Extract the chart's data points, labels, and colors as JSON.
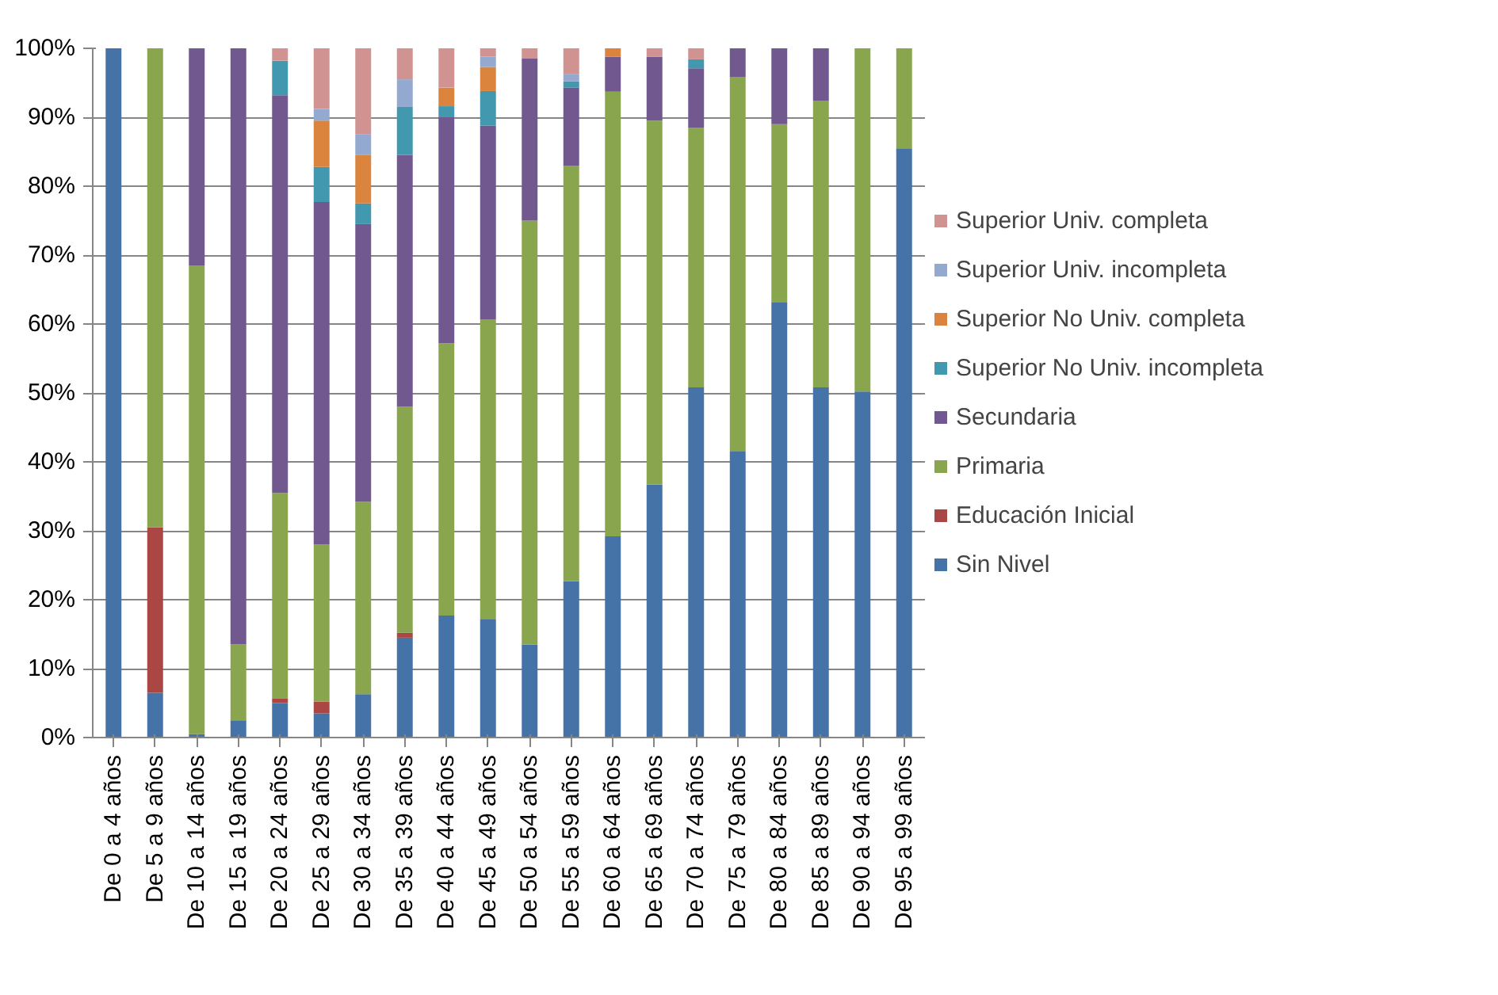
{
  "chart_data": {
    "type": "bar",
    "stacked": true,
    "categories": [
      "De 0 a 4 años",
      "De 5 a 9 años",
      "De 10 a 14 años",
      "De 15 a 19 años",
      "De 20 a 24 años",
      "De 25 a 29 años",
      "De 30 a 34 años",
      "De 35 a 39 años",
      "De 40 a 44 años",
      "De 45 a 49 años",
      "De 50 a 54 años",
      "De 55 a 59 años",
      "De 60 a 64 años",
      "De 65 a 69 años",
      "De 70 a 74 años",
      "De 75 a 79 años",
      "De 80 a 84 años",
      "De 85 a 89 años",
      "De 90 a 94 años",
      "De 95 a 99 años"
    ],
    "series": [
      {
        "name": "Sin Nivel",
        "color": "#4572a7",
        "values": [
          100,
          6.5,
          0.5,
          2.5,
          5,
          3.5,
          6.3,
          14.5,
          17.7,
          17.2,
          13.5,
          22.7,
          29.2,
          36.7,
          50.8,
          41.5,
          63.2,
          50.8,
          50.2,
          85.5
        ]
      },
      {
        "name": "Educación Inicial",
        "color": "#aa4643",
        "values": [
          0,
          24,
          0,
          0,
          0.7,
          1.7,
          0,
          0.7,
          0,
          0,
          0,
          0,
          0,
          0,
          0,
          0,
          0,
          0,
          0,
          0
        ]
      },
      {
        "name": "Primaria",
        "color": "#89a54e",
        "values": [
          0,
          69.5,
          68,
          11,
          29.8,
          22.8,
          27.9,
          32.8,
          39.5,
          43.5,
          61.5,
          60.3,
          64.5,
          52.8,
          37.7,
          54.3,
          25.8,
          41.6,
          49.8,
          14.5
        ]
      },
      {
        "name": "Secundaria",
        "color": "#71588f",
        "values": [
          0,
          0,
          31.5,
          86.5,
          57.7,
          49.7,
          40.3,
          36.5,
          32.8,
          28.1,
          23.5,
          11.3,
          5.1,
          9.3,
          8.6,
          4.2,
          11,
          7.6,
          0,
          0
        ]
      },
      {
        "name": "Superior No Univ. incompleta",
        "color": "#4198af",
        "values": [
          0,
          0,
          0,
          0,
          5,
          5.1,
          3,
          7,
          1.6,
          5,
          0,
          0.9,
          0,
          0,
          1.3,
          0,
          0,
          0,
          0,
          0
        ]
      },
      {
        "name": "Superior No Univ. completa",
        "color": "#db843d",
        "values": [
          0,
          0,
          0,
          0,
          0,
          6.7,
          7,
          0,
          2.7,
          3.5,
          0,
          0,
          1.2,
          0,
          0,
          0,
          0,
          0,
          0,
          0
        ]
      },
      {
        "name": "Superior Univ. incompleta",
        "color": "#93a9cf",
        "values": [
          0,
          0,
          0,
          0,
          0,
          1.7,
          3,
          4,
          0,
          1.5,
          0,
          1.1,
          0,
          0,
          0,
          0,
          0,
          0,
          0,
          0
        ]
      },
      {
        "name": "Superior Univ. completa",
        "color": "#d19392",
        "values": [
          0,
          0,
          0,
          0,
          1.8,
          8.8,
          12.5,
          4.5,
          5.7,
          1.2,
          1.5,
          3.7,
          0,
          1.2,
          1.6,
          0,
          0,
          0,
          0,
          0
        ]
      }
    ],
    "ylim": [
      0,
      100
    ],
    "yticks": [
      {
        "value": 0,
        "label": "0%"
      },
      {
        "value": 10,
        "label": "10%"
      },
      {
        "value": 20,
        "label": "20%"
      },
      {
        "value": 30,
        "label": "30%"
      },
      {
        "value": 40,
        "label": "40%"
      },
      {
        "value": 50,
        "label": "50%"
      },
      {
        "value": 60,
        "label": "60%"
      },
      {
        "value": 70,
        "label": "70%"
      },
      {
        "value": 80,
        "label": "80%"
      },
      {
        "value": 90,
        "label": "90%"
      },
      {
        "value": 100,
        "label": "100%"
      }
    ],
    "grid": "y",
    "legend": "right"
  }
}
